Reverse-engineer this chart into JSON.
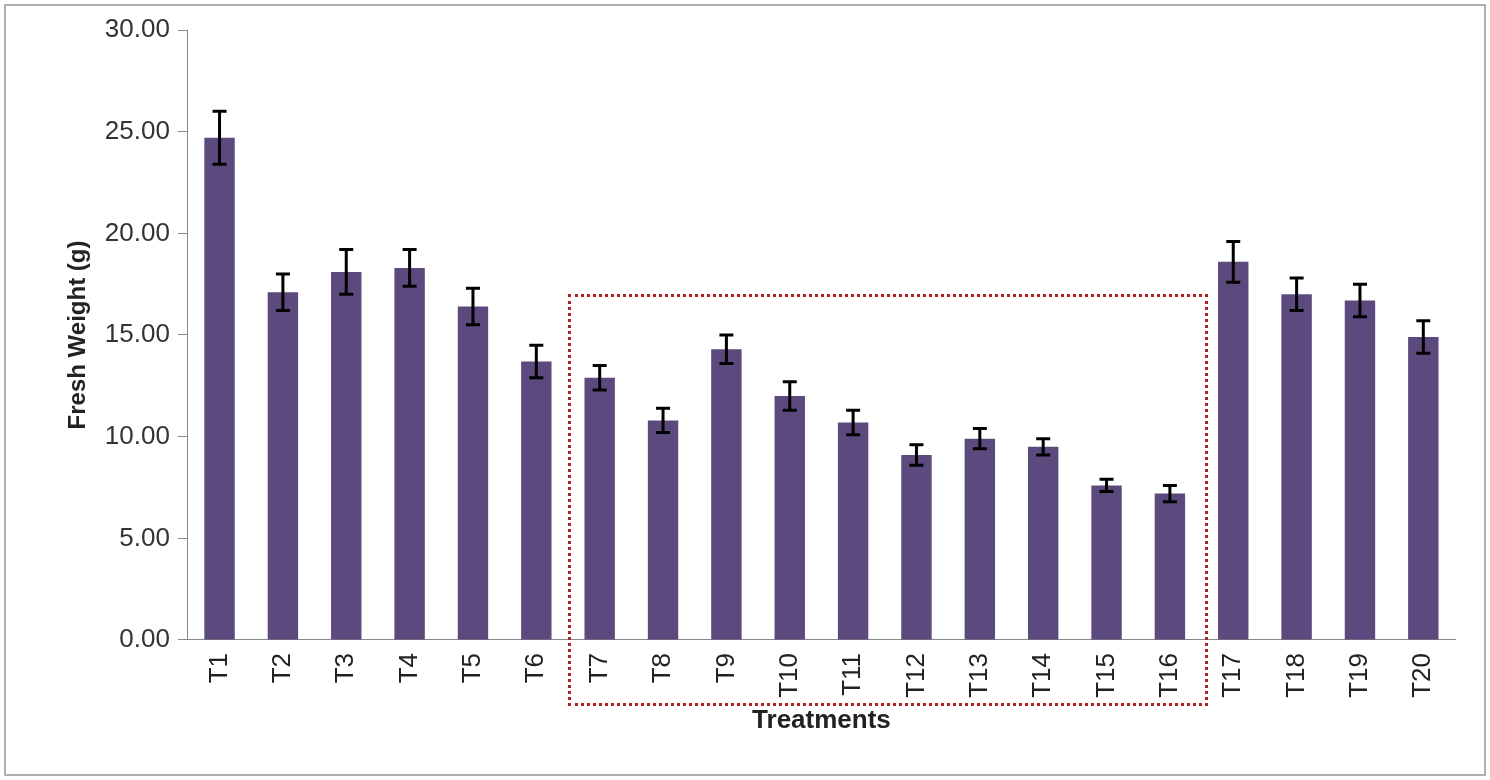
{
  "chart_data": {
    "type": "bar",
    "xlabel": "Treatments",
    "ylabel": "Fresh Weight (g)",
    "categories": [
      "T1",
      "T2",
      "T3",
      "T4",
      "T5",
      "T6",
      "T7",
      "T8",
      "T9",
      "T10",
      "T11",
      "T12",
      "T13",
      "T14",
      "T15",
      "T16",
      "T17",
      "T18",
      "T19",
      "T20"
    ],
    "values": [
      24.7,
      17.1,
      18.1,
      18.3,
      16.4,
      13.7,
      12.9,
      10.8,
      14.3,
      12.0,
      10.7,
      9.1,
      9.9,
      9.5,
      7.6,
      7.2,
      18.6,
      17.0,
      16.7,
      14.9
    ],
    "errors": [
      1.3,
      0.9,
      1.1,
      0.9,
      0.9,
      0.8,
      0.6,
      0.6,
      0.7,
      0.7,
      0.6,
      0.5,
      0.5,
      0.4,
      0.3,
      0.4,
      1.0,
      0.8,
      0.8,
      0.8
    ],
    "color": "#5c4a7e",
    "ylim": [
      0,
      30
    ],
    "yticks": [
      {
        "value": 0,
        "label": "0.00"
      },
      {
        "value": 5,
        "label": "5.00"
      },
      {
        "value": 10,
        "label": "10.00"
      },
      {
        "value": 15,
        "label": "15.00"
      },
      {
        "value": 20,
        "label": "20.00"
      },
      {
        "value": 25,
        "label": "25.00"
      },
      {
        "value": 30,
        "label": "30.00"
      }
    ],
    "grid": false,
    "legend": false
  }
}
